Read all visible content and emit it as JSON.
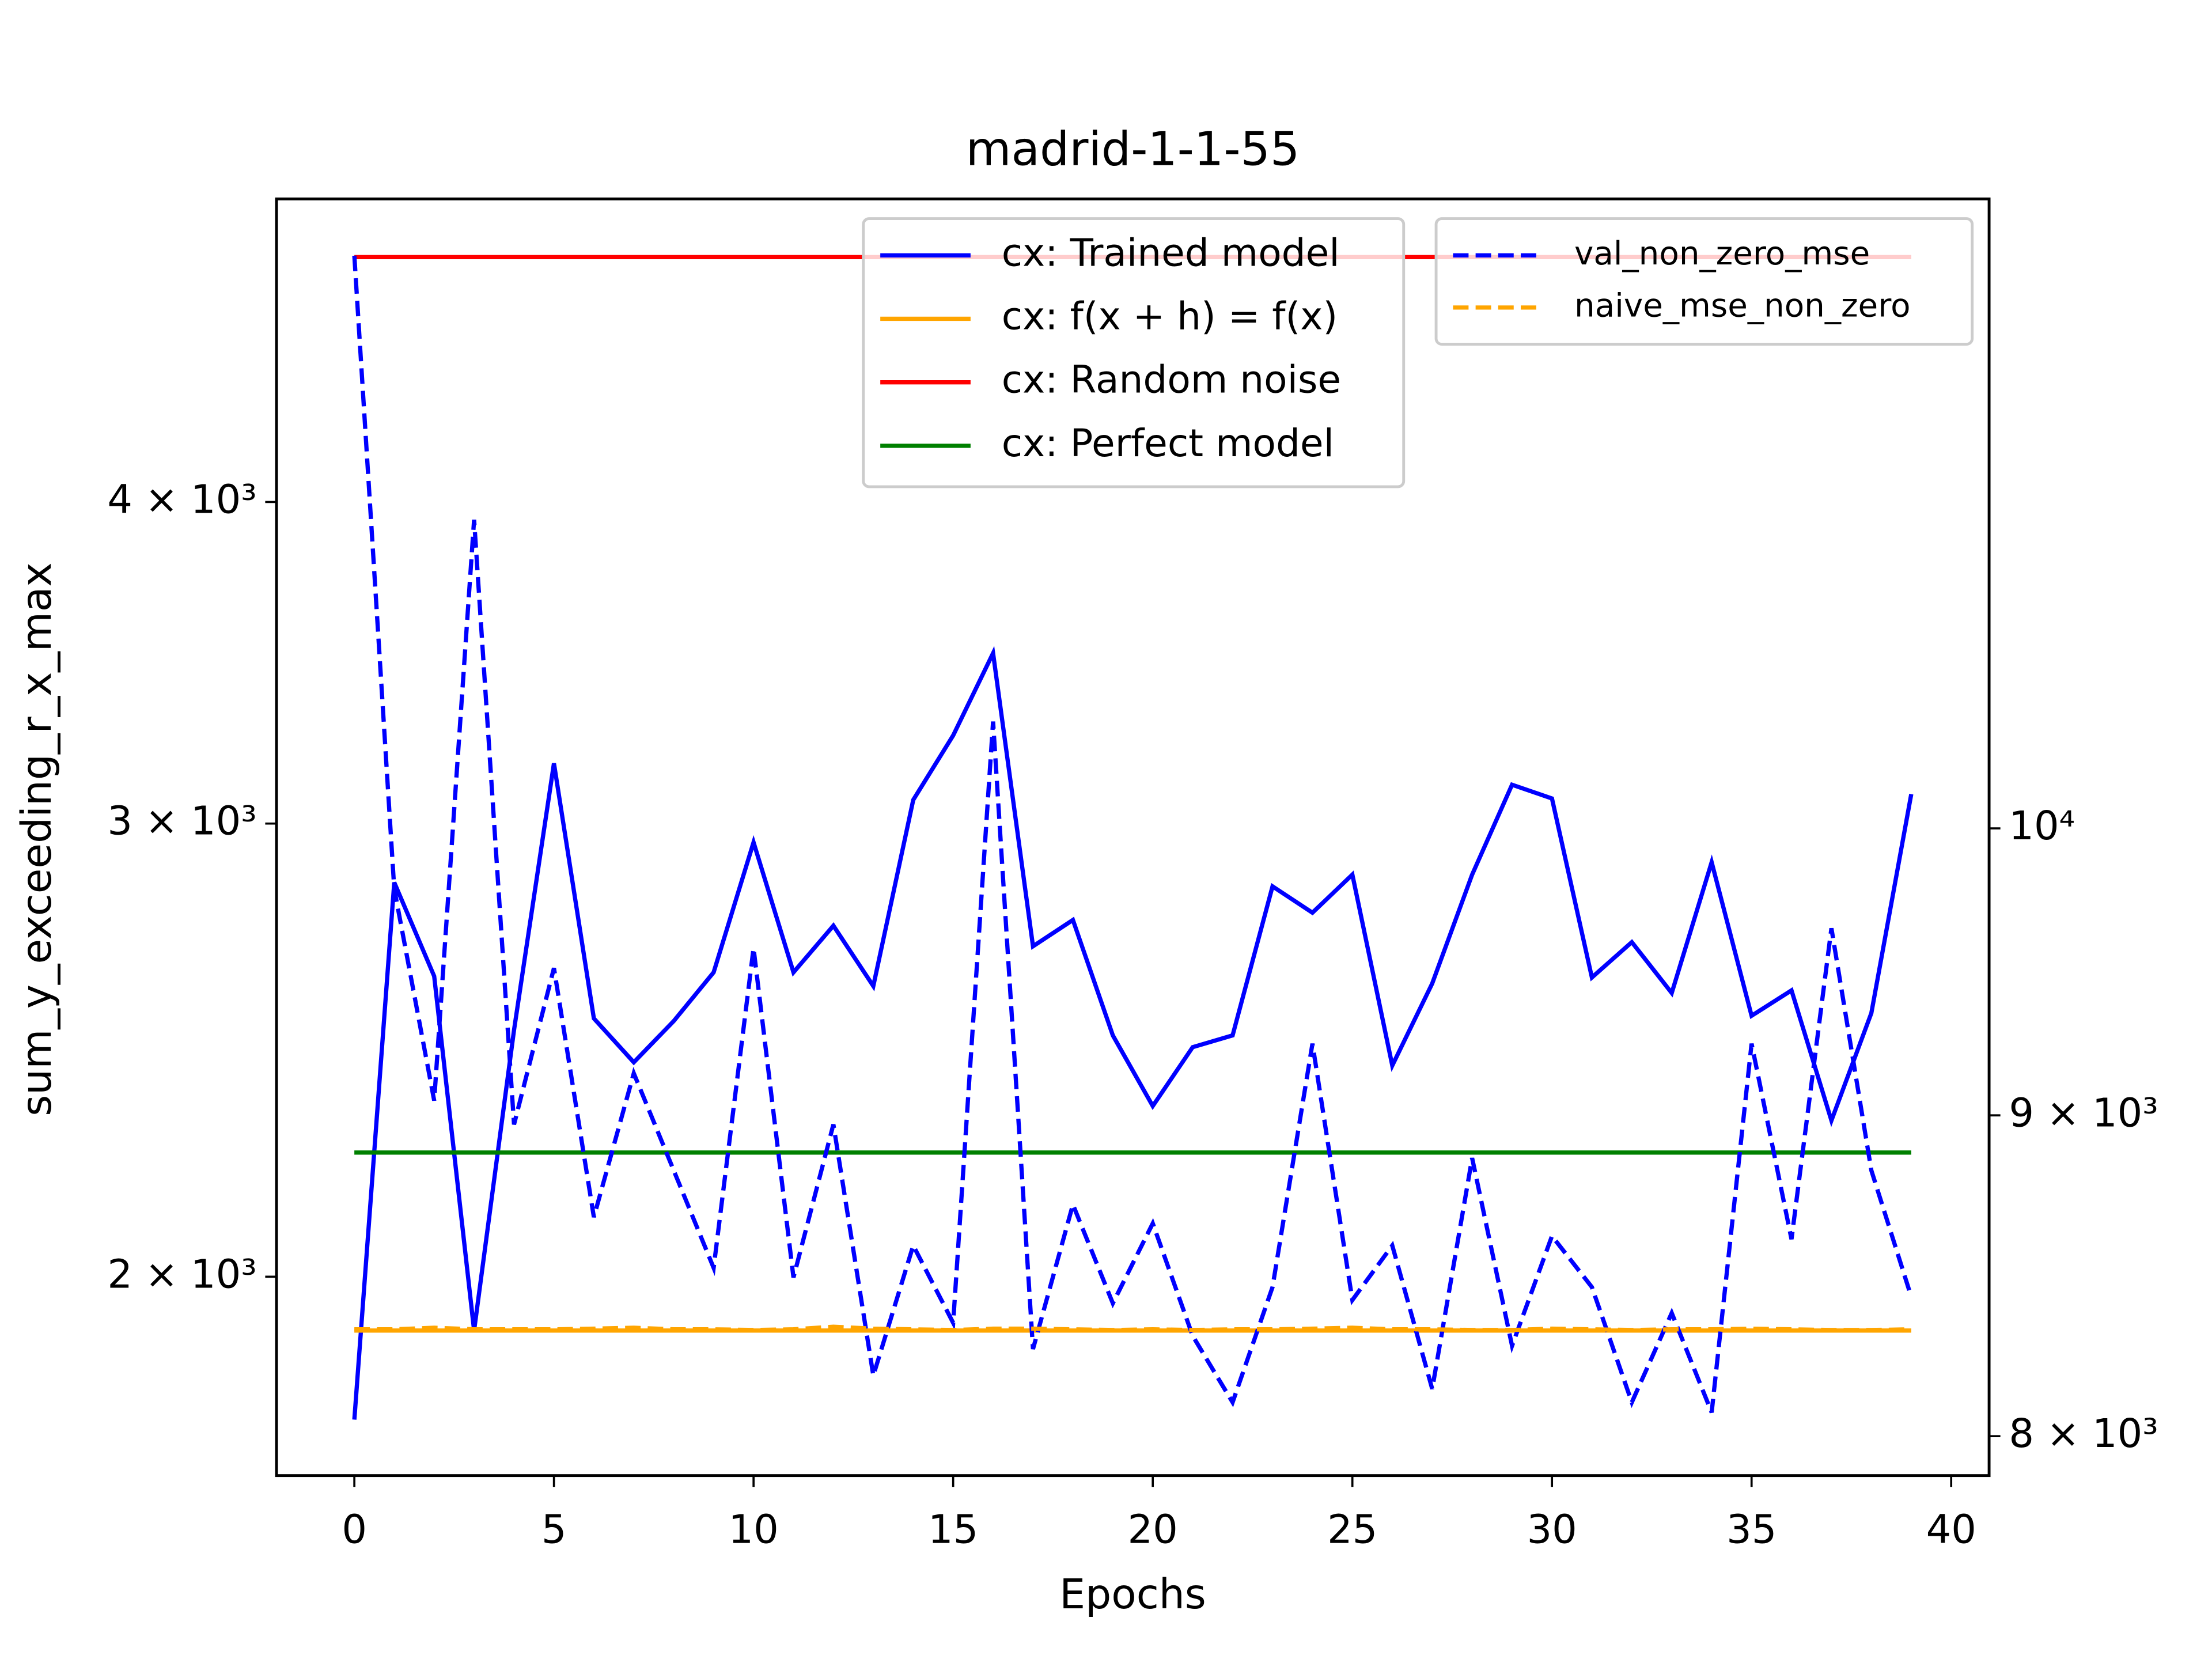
{
  "chart_data": {
    "type": "line",
    "title": "madrid-1-1-55",
    "xlabel": "Epochs",
    "ylabel": "sum_y_exceeding_r_x_max",
    "x": [
      0,
      1,
      2,
      3,
      4,
      5,
      6,
      7,
      8,
      9,
      10,
      11,
      12,
      13,
      14,
      15,
      16,
      17,
      18,
      19,
      20,
      21,
      22,
      23,
      24,
      25,
      26,
      27,
      28,
      29,
      30,
      31,
      32,
      33,
      34,
      35,
      36,
      37,
      38,
      39
    ],
    "xlim": [
      -1.95,
      40.95
    ],
    "xticks": [
      0,
      5,
      10,
      15,
      20,
      25,
      30,
      35,
      40
    ],
    "ylog": true,
    "ylim": [
      1674,
      5246
    ],
    "yticks": [
      {
        "value": 2000,
        "label": "2 × 10³"
      },
      {
        "value": 3000,
        "label": "3 × 10³"
      },
      {
        "value": 4000,
        "label": "4 × 10³"
      }
    ],
    "y2log": true,
    "y2lim": [
      7885,
      12600
    ],
    "y2ticks": [
      {
        "value": 8000,
        "label": "8 × 10³"
      },
      {
        "value": 9000,
        "label": "9 × 10³"
      },
      {
        "value": 10000,
        "label": "10⁴"
      }
    ],
    "legend_loc": "upper center",
    "legend2_loc": "upper right",
    "series": [
      {
        "name": "cx: Trained model",
        "color": "#0000ff",
        "linestyle": "solid",
        "values": [
          1760,
          2846,
          2617,
          1906,
          2494,
          3166,
          2520,
          2423,
          2514,
          2626,
          2950,
          2626,
          2738,
          2594,
          3064,
          3246,
          3494,
          2688,
          2752,
          2482,
          2330,
          2456,
          2482,
          2836,
          2770,
          2866,
          2416,
          2600,
          2866,
          3106,
          3068,
          2614,
          2698,
          2578,
          2898,
          2526,
          2584,
          2300,
          2532,
          3080
        ]
      },
      {
        "name": "cx: f(x + h) = f(x)",
        "color": "#ffa500",
        "linestyle": "solid",
        "values": [
          1906,
          1906,
          1906,
          1906,
          1906,
          1906,
          1906,
          1906,
          1906,
          1906,
          1906,
          1906,
          1906,
          1906,
          1906,
          1906,
          1906,
          1906,
          1906,
          1906,
          1906,
          1906,
          1906,
          1906,
          1906,
          1906,
          1906,
          1906,
          1906,
          1906,
          1906,
          1906,
          1906,
          1906,
          1906,
          1906,
          1906,
          1906,
          1906,
          1906
        ]
      },
      {
        "name": "cx: Random noise",
        "color": "#ff0000",
        "linestyle": "solid",
        "values": [
          4980,
          4980,
          4980,
          4980,
          4980,
          4980,
          4980,
          4980,
          4980,
          4980,
          4980,
          4980,
          4980,
          4980,
          4980,
          4980,
          4980,
          4980,
          4980,
          4980,
          4980,
          4980,
          4980,
          4980,
          4980,
          4980,
          4980,
          4980,
          4980,
          4980,
          4980,
          4980,
          4980,
          4980,
          4980,
          4980,
          4980,
          4980,
          4980,
          4980
        ]
      },
      {
        "name": "cx: Perfect model",
        "color": "#008000",
        "linestyle": "solid",
        "values": [
          2235,
          2235,
          2235,
          2235,
          2235,
          2235,
          2235,
          2235,
          2235,
          2235,
          2235,
          2235,
          2235,
          2235,
          2235,
          2235,
          2235,
          2235,
          2235,
          2235,
          2235,
          2235,
          2235,
          2235,
          2235,
          2235,
          2235,
          2235,
          2235,
          2235,
          2235,
          2235,
          2235,
          2235,
          2235,
          2235,
          2235,
          2235,
          2235,
          2235
        ]
      },
      {
        "name": "val_non_zero_mse",
        "color": "#0000ff",
        "linestyle": "dashed",
        "axis": "y2",
        "values": [
          12340,
          9780,
          9049,
          11200,
          8970,
          9500,
          8670,
          9140,
          8820,
          8510,
          9570,
          8480,
          8970,
          8180,
          8580,
          8340,
          10400,
          8260,
          8710,
          8400,
          8650,
          8300,
          8100,
          8450,
          9240,
          8410,
          8580,
          8140,
          8860,
          8270,
          8610,
          8450,
          8100,
          8370,
          8070,
          9240,
          8600,
          9640,
          8820,
          8420
        ]
      },
      {
        "name": "naive_mse_non_zero",
        "color": "#ffa500",
        "linestyle": "dashed",
        "axis": "y2",
        "values": [
          8320,
          8320,
          8325,
          8320,
          8320,
          8320,
          8322,
          8325,
          8320,
          8320,
          8318,
          8320,
          8328,
          8322,
          8320,
          8318,
          8322,
          8322,
          8320,
          8318,
          8320,
          8318,
          8320,
          8320,
          8322,
          8325,
          8320,
          8320,
          8318,
          8318,
          8322,
          8320,
          8318,
          8320,
          8320,
          8322,
          8320,
          8318,
          8318,
          8320
        ]
      }
    ]
  }
}
